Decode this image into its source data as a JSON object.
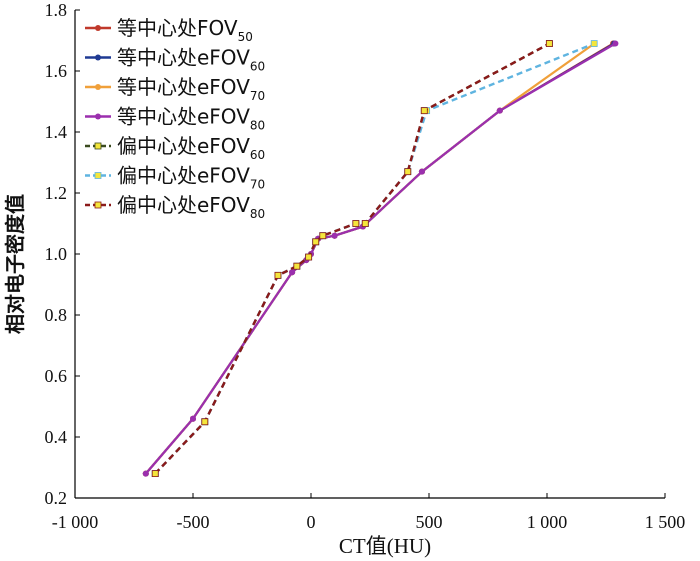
{
  "chart_data": {
    "type": "line",
    "xlabel": "CT值(HU)",
    "ylabel": "相对电子密度值",
    "xlim": [
      -1000,
      1500
    ],
    "ylim": [
      0.2,
      1.8
    ],
    "x_ticks": [
      -1000,
      -500,
      0,
      500,
      1000,
      1500
    ],
    "x_tick_labels": [
      "-1 000",
      "-500",
      "0",
      "500",
      "1 000",
      "1 500"
    ],
    "y_ticks": [
      0.2,
      0.4,
      0.6,
      0.8,
      1.0,
      1.2,
      1.4,
      1.6,
      1.8
    ],
    "y_tick_labels": [
      "0.2",
      "0.4",
      "0.6",
      "0.8",
      "1.0",
      "1.2",
      "1.4",
      "1.6",
      "1.8"
    ],
    "grid": false,
    "legend_position": "top-left",
    "series": [
      {
        "name": "等中心处FOV",
        "sub": "50",
        "color": "#c0392b",
        "dash": "solid",
        "x": [
          -700,
          -500,
          -80,
          -20,
          0,
          30,
          100,
          220,
          470,
          800,
          1280
        ],
        "y": [
          0.28,
          0.46,
          0.94,
          0.98,
          1.0,
          1.05,
          1.06,
          1.09,
          1.27,
          1.47,
          1.69
        ]
      },
      {
        "name": "等中心处eFOV",
        "sub": "60",
        "color": "#1f3a93",
        "dash": "solid",
        "x": [
          -700,
          -500,
          -80,
          -20,
          0,
          30,
          100,
          220,
          470,
          800,
          1285
        ],
        "y": [
          0.28,
          0.46,
          0.94,
          0.98,
          1.0,
          1.05,
          1.06,
          1.09,
          1.27,
          1.47,
          1.69
        ]
      },
      {
        "name": "等中心处eFOV",
        "sub": "70",
        "color": "#f0a03a",
        "dash": "solid",
        "x": [
          -700,
          -500,
          -80,
          -20,
          0,
          30,
          100,
          220,
          470,
          800,
          1200
        ],
        "y": [
          0.28,
          0.46,
          0.94,
          0.98,
          1.0,
          1.05,
          1.06,
          1.09,
          1.27,
          1.47,
          1.69
        ]
      },
      {
        "name": "等中心处eFOV",
        "sub": "80",
        "color": "#9b2fae",
        "dash": "solid",
        "x": [
          -700,
          -500,
          -80,
          -20,
          0,
          30,
          100,
          220,
          470,
          800,
          1290
        ],
        "y": [
          0.28,
          0.46,
          0.94,
          0.98,
          1.0,
          1.05,
          1.06,
          1.09,
          1.27,
          1.47,
          1.69
        ]
      },
      {
        "name": "偏中心处eFOV",
        "sub": "60",
        "color": "#3a4a1f",
        "dash": "dashed",
        "x": [
          -660,
          -450,
          -140,
          -60,
          -10,
          20,
          50,
          190,
          230,
          410,
          480,
          1010
        ],
        "y": [
          0.28,
          0.45,
          0.93,
          0.96,
          0.99,
          1.04,
          1.06,
          1.1,
          1.1,
          1.27,
          1.47,
          1.69
        ]
      },
      {
        "name": "偏中心处eFOV",
        "sub": "70",
        "color": "#5fb4e0",
        "dash": "dashed",
        "x": [
          -660,
          -450,
          -140,
          -60,
          -10,
          20,
          50,
          190,
          230,
          410,
          490,
          1200
        ],
        "y": [
          0.28,
          0.45,
          0.93,
          0.96,
          0.99,
          1.04,
          1.06,
          1.1,
          1.1,
          1.27,
          1.47,
          1.69
        ]
      },
      {
        "name": "偏中心处eFOV",
        "sub": "80",
        "color": "#8b1a1a",
        "dash": "dashed",
        "x": [
          -660,
          -450,
          -140,
          -60,
          -10,
          20,
          50,
          190,
          230,
          410,
          480,
          1010
        ],
        "y": [
          0.28,
          0.45,
          0.93,
          0.96,
          0.99,
          1.04,
          1.06,
          1.1,
          1.1,
          1.27,
          1.47,
          1.69
        ]
      }
    ]
  }
}
